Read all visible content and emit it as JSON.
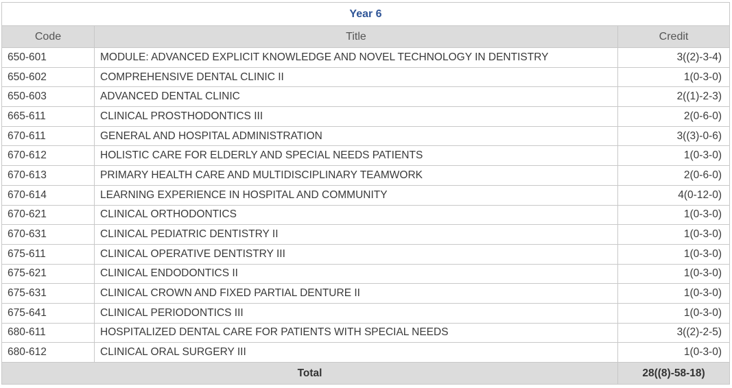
{
  "table": {
    "heading": "Year 6",
    "columns": {
      "code": "Code",
      "title": "Title",
      "credit": "Credit"
    },
    "rows": [
      {
        "code": "650-601",
        "title": "MODULE: ADVANCED EXPLICIT KNOWLEDGE AND NOVEL TECHNOLOGY IN DENTISTRY",
        "credit": "3((2)-3-4)"
      },
      {
        "code": "650-602",
        "title": "COMPREHENSIVE DENTAL CLINIC II",
        "credit": "1(0-3-0)"
      },
      {
        "code": "650-603",
        "title": "ADVANCED DENTAL CLINIC",
        "credit": "2((1)-2-3)"
      },
      {
        "code": "665-611",
        "title": "CLINICAL PROSTHODONTICS III",
        "credit": "2(0-6-0)"
      },
      {
        "code": "670-611",
        "title": "GENERAL AND HOSPITAL ADMINISTRATION",
        "credit": "3((3)-0-6)"
      },
      {
        "code": "670-612",
        "title": "HOLISTIC CARE FOR ELDERLY AND SPECIAL NEEDS PATIENTS",
        "credit": "1(0-3-0)"
      },
      {
        "code": "670-613",
        "title": "PRIMARY HEALTH CARE AND MULTIDISCIPLINARY TEAMWORK",
        "credit": "2(0-6-0)"
      },
      {
        "code": "670-614",
        "title": "LEARNING EXPERIENCE IN HOSPITAL AND COMMUNITY",
        "credit": "4(0-12-0)"
      },
      {
        "code": "670-621",
        "title": "CLINICAL ORTHODONTICS",
        "credit": "1(0-3-0)"
      },
      {
        "code": "670-631",
        "title": "CLINICAL PEDIATRIC DENTISTRY II",
        "credit": "1(0-3-0)"
      },
      {
        "code": "675-611",
        "title": "CLINICAL OPERATIVE DENTISTRY III",
        "credit": "1(0-3-0)"
      },
      {
        "code": "675-621",
        "title": "CLINICAL ENDODONTICS II",
        "credit": "1(0-3-0)"
      },
      {
        "code": "675-631",
        "title": "CLINICAL CROWN AND FIXED PARTIAL DENTURE II",
        "credit": "1(0-3-0)"
      },
      {
        "code": "675-641",
        "title": "CLINICAL PERIODONTICS III",
        "credit": "1(0-3-0)"
      },
      {
        "code": "680-611",
        "title": "HOSPITALIZED DENTAL CARE FOR PATIENTS WITH SPECIAL NEEDS",
        "credit": "3((2)-2-5)"
      },
      {
        "code": "680-612",
        "title": "CLINICAL ORAL SURGERY III",
        "credit": "1(0-3-0)"
      }
    ],
    "total_label": "Total",
    "total_value": "28((8)-58-18)"
  }
}
